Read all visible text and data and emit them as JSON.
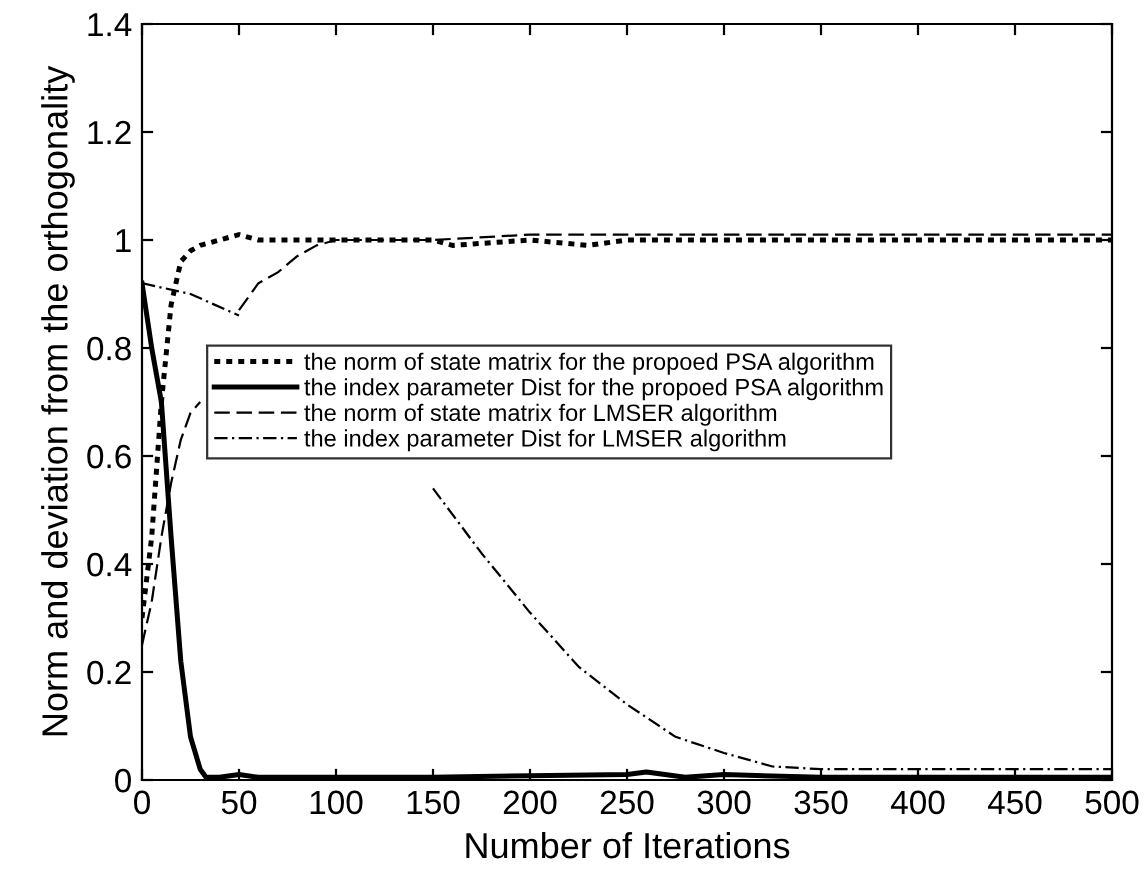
{
  "chart_data": {
    "type": "line",
    "xlabel": "Number of Iterations",
    "ylabel": "Norm and deviation from the orthogonality",
    "xlim": [
      0,
      500
    ],
    "ylim": [
      0,
      1.4
    ],
    "xticks": [
      0,
      50,
      100,
      150,
      200,
      250,
      300,
      350,
      400,
      450,
      500
    ],
    "yticks": [
      0,
      0.2,
      0.4,
      0.6,
      0.8,
      1,
      1.2,
      1.4
    ],
    "grid": false,
    "legend": "center left",
    "series": [
      {
        "name": "the norm of state matrix for the propoed PSA algorithm",
        "color": "#000000",
        "line_style": "dotted",
        "x": [
          0,
          5,
          10,
          15,
          20,
          25,
          30,
          40,
          50,
          60,
          100,
          150,
          160,
          200,
          230,
          250,
          300,
          350,
          400,
          450,
          500
        ],
        "values": [
          0.3,
          0.45,
          0.7,
          0.88,
          0.96,
          0.98,
          0.99,
          1.0,
          1.01,
          1.0,
          1.0,
          1.0,
          0.99,
          1.0,
          0.99,
          1.0,
          1.0,
          1.0,
          1.0,
          1.0,
          1.0
        ]
      },
      {
        "name": "the index parameter Dist for the propoed PSA algorithm",
        "color": "#000000",
        "line_style": "solid",
        "x": [
          0,
          5,
          10,
          15,
          20,
          25,
          30,
          33,
          40,
          50,
          60,
          100,
          150,
          200,
          250,
          260,
          280,
          300,
          350,
          400,
          450,
          500
        ],
        "values": [
          0.92,
          0.8,
          0.7,
          0.45,
          0.22,
          0.08,
          0.02,
          0.005,
          0.005,
          0.01,
          0.005,
          0.005,
          0.005,
          0.008,
          0.01,
          0.015,
          0.005,
          0.01,
          0.005,
          0.005,
          0.005,
          0.005
        ]
      },
      {
        "name": "the norm of state matrix for LMSER algorithm",
        "color": "#000000",
        "line_style": "dashed",
        "x": [
          0,
          5,
          10,
          15,
          20,
          25,
          30,
          40,
          50,
          60,
          70,
          80,
          90,
          100,
          150,
          200,
          250,
          300,
          350,
          400,
          450,
          500
        ],
        "values": [
          0.25,
          0.33,
          0.45,
          0.55,
          0.63,
          0.68,
          0.7,
          null,
          0.87,
          0.92,
          0.94,
          0.97,
          0.99,
          1.0,
          1.0,
          1.01,
          1.01,
          1.01,
          1.01,
          1.01,
          1.01,
          1.01
        ]
      },
      {
        "name": "the index parameter Dist for LMSER algorithm",
        "color": "#000000",
        "line_style": "dashdot",
        "x": [
          0,
          25,
          50,
          75,
          100,
          125,
          150,
          175,
          200,
          225,
          250,
          275,
          300,
          325,
          350,
          400,
          450,
          500
        ],
        "values": [
          0.92,
          0.9,
          0.86,
          null,
          null,
          null,
          0.54,
          0.42,
          0.31,
          0.21,
          0.14,
          0.08,
          0.05,
          0.025,
          0.02,
          0.02,
          0.02,
          0.02
        ]
      }
    ]
  }
}
